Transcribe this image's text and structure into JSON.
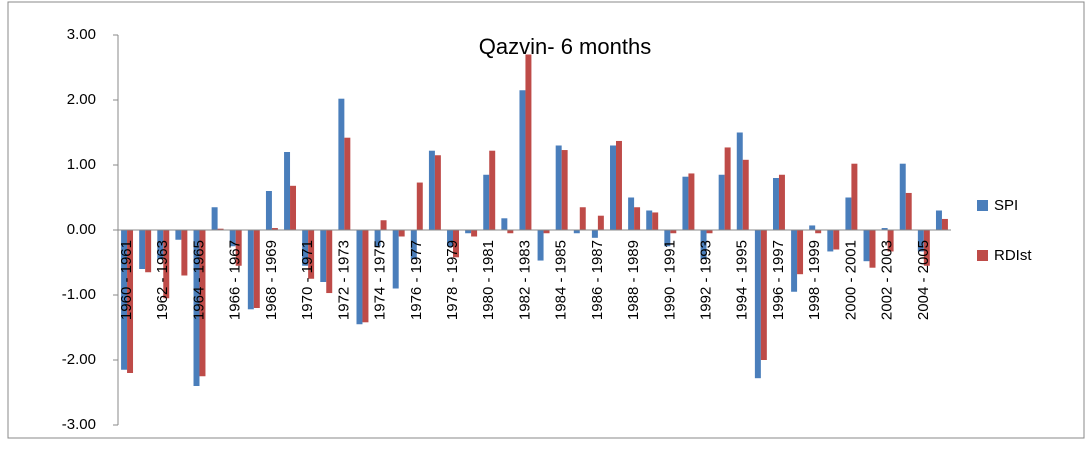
{
  "chart_data": {
    "type": "bar",
    "title": "Qazvin- 6 months",
    "categories": [
      "1960 - 1961",
      null,
      "1962 - 1963",
      null,
      "1964 - 1965",
      null,
      "1966 - 1967",
      null,
      "1968 - 1969",
      null,
      "1970 - 1971",
      null,
      "1972 - 1973",
      null,
      "1974 - 1975",
      null,
      "1976 - 1977",
      null,
      "1978 - 1979",
      null,
      "1980 - 1981",
      null,
      "1982 - 1983",
      null,
      "1984 - 1985",
      null,
      "1986 - 1987",
      null,
      "1988 - 1989",
      null,
      "1990 - 1991",
      null,
      "1992 - 1993",
      null,
      "1994 - 1995",
      null,
      "1996 - 1997",
      null,
      "1998 - 1999",
      null,
      "2000 - 2001",
      null,
      "2002 - 2003",
      null,
      "2004 - 2005",
      null
    ],
    "series": [
      {
        "name": "SPI",
        "color": "#4a7ebb",
        "values": [
          -2.15,
          -0.6,
          -0.45,
          -0.15,
          -2.4,
          0.35,
          -0.25,
          -1.22,
          0.6,
          1.2,
          -0.55,
          -0.8,
          2.02,
          -1.45,
          -0.25,
          -0.9,
          -0.45,
          1.22,
          -0.25,
          -0.05,
          0.85,
          0.18,
          2.15,
          -0.47,
          1.3,
          -0.05,
          -0.12,
          1.3,
          0.5,
          0.3,
          -0.25,
          0.82,
          -0.45,
          0.85,
          1.5,
          -2.28,
          0.8,
          -0.95,
          0.07,
          -0.33,
          0.5,
          -0.48,
          0.03,
          1.02,
          -0.33,
          0.3
        ]
      },
      {
        "name": "RDIst",
        "color": "#be4b48",
        "values": [
          -2.2,
          -0.65,
          -1.05,
          -0.7,
          -2.25,
          0.02,
          -0.55,
          -1.2,
          0.03,
          0.68,
          -0.75,
          -0.97,
          1.42,
          -1.42,
          0.15,
          -0.1,
          0.73,
          1.15,
          -0.42,
          -0.1,
          1.22,
          -0.05,
          2.7,
          -0.05,
          1.23,
          0.35,
          0.22,
          1.37,
          0.35,
          0.27,
          -0.05,
          0.87,
          -0.05,
          1.27,
          1.08,
          -2.0,
          0.85,
          -0.68,
          -0.05,
          -0.3,
          1.02,
          -0.58,
          -0.33,
          0.57,
          -0.55,
          0.17
        ]
      }
    ],
    "ylim": [
      -3,
      3
    ],
    "yticks": [
      {
        "value": -3,
        "label": "-3.00"
      },
      {
        "value": -2,
        "label": "-2.00"
      },
      {
        "value": -1,
        "label": "-1.00"
      },
      {
        "value": 0,
        "label": "0.00"
      },
      {
        "value": 1,
        "label": "1.00"
      },
      {
        "value": 2,
        "label": "2.00"
      },
      {
        "value": 3,
        "label": "3.00"
      }
    ],
    "grid": false
  }
}
